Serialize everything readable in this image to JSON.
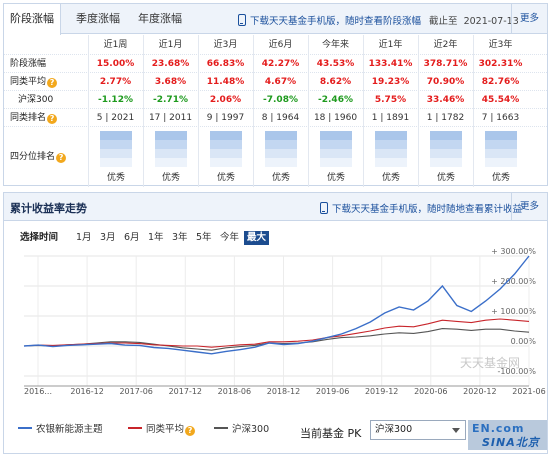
{
  "tabs": [
    {
      "label": "阶段涨幅",
      "active": true
    },
    {
      "label": "季度涨幅",
      "active": false
    },
    {
      "label": "年度涨幅",
      "active": false
    }
  ],
  "download_promo": "下载天天基金手机版，随时查看阶段涨幅",
  "deadline_label": "截止至",
  "deadline_date": "2021-07-13",
  "more_label": "更多",
  "periods": [
    "近1周",
    "近1月",
    "近3月",
    "近6月",
    "今年来",
    "近1年",
    "近2年",
    "近3年"
  ],
  "rows": {
    "stage": {
      "label": "阶段涨幅",
      "values": [
        "15.00%",
        "23.68%",
        "66.83%",
        "42.27%",
        "43.53%",
        "133.41%",
        "378.71%",
        "302.31%"
      ]
    },
    "peer_avg": {
      "label": "同类平均",
      "values": [
        "2.77%",
        "3.68%",
        "11.48%",
        "4.67%",
        "8.62%",
        "19.23%",
        "70.90%",
        "82.76%"
      ]
    },
    "hs300": {
      "label": "沪深300",
      "values": [
        "-1.12%",
        "-2.71%",
        "2.06%",
        "-7.08%",
        "-2.46%",
        "5.75%",
        "33.46%",
        "45.54%"
      ]
    },
    "rank": {
      "label": "同类排名",
      "values": [
        "5 | 2021",
        "17 | 2011",
        "9 | 1997",
        "8 | 1964",
        "18 | 1960",
        "1 | 1891",
        "1 | 1782",
        "7 | 1663"
      ]
    },
    "quartile": {
      "label": "四分位排名",
      "values": [
        "优秀",
        "优秀",
        "优秀",
        "优秀",
        "优秀",
        "优秀",
        "优秀",
        "优秀"
      ]
    }
  },
  "chart_panel": {
    "title": "累计收益率走势",
    "download_promo": "下载天天基金手机版，随时随地查看累计收益",
    "more_label": "更多",
    "range_label": "选择时间",
    "ranges": [
      "1月",
      "3月",
      "6月",
      "1年",
      "3年",
      "5年",
      "今年",
      "最大"
    ],
    "active_range": "最大",
    "watermark": "天天基金网",
    "pk_label": "当前基金  PK",
    "pk_selected": "沪深300",
    "corner_watermark_top": "EN.com",
    "corner_watermark_bottom": "SINA北京"
  },
  "colors": {
    "fund": "#3b6fc9",
    "peer": "#c8252b",
    "hs300": "#555555",
    "positive": "#e41c1c",
    "negative": "#1e9a1e",
    "accent": "#1c4c8f"
  },
  "chart_data": {
    "type": "line",
    "x_ticks": [
      "2016...",
      "2016-12",
      "2017-06",
      "2017-12",
      "2018-06",
      "2018-12",
      "2019-06",
      "2019-12",
      "2020-06",
      "2020-12",
      "2021-06"
    ],
    "y_ticks": [
      "+ 300.00%",
      "+ 200.00%",
      "+ 100.00%",
      "0.00%",
      "-100.00%"
    ],
    "ylim": [
      -100,
      300
    ],
    "series": [
      {
        "name": "农银新能源主题",
        "values": [
          0,
          3,
          -2,
          2,
          4,
          6,
          8,
          3,
          2,
          -5,
          -8,
          -14,
          -20,
          -26,
          -18,
          -12,
          -4,
          10,
          5,
          8,
          16,
          28,
          40,
          58,
          80,
          110,
          130,
          120,
          150,
          200,
          135,
          115,
          150,
          190,
          240,
          300
        ]
      },
      {
        "name": "同类平均",
        "values": [
          0,
          3,
          2,
          4,
          6,
          8,
          10,
          10,
          8,
          4,
          2,
          0,
          0,
          -4,
          0,
          4,
          6,
          14,
          14,
          16,
          20,
          28,
          34,
          42,
          50,
          60,
          66,
          64,
          74,
          86,
          82,
          78,
          86,
          90,
          86,
          82
        ]
      },
      {
        "name": "沪深300",
        "values": [
          0,
          2,
          0,
          4,
          6,
          10,
          14,
          14,
          12,
          6,
          0,
          -6,
          -10,
          -14,
          -6,
          -2,
          2,
          10,
          8,
          10,
          14,
          22,
          28,
          30,
          34,
          40,
          44,
          42,
          48,
          58,
          56,
          52,
          56,
          56,
          50,
          46
        ]
      }
    ]
  }
}
